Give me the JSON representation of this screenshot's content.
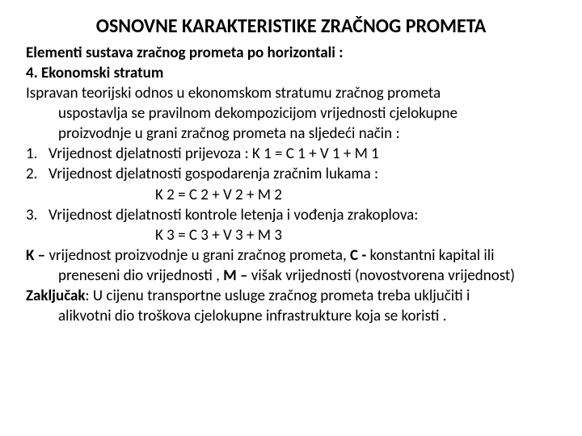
{
  "title": "OSNOVNE KARAKTERISTIKE ZRAČNOG PROMETA",
  "subtitle": "Elementi sustava zračnog prometa po horizontali :",
  "stratum": "4. Ekonomski stratum",
  "intro_l1": "Ispravan teorijski odnos u ekonomskom stratumu zračnog prometa",
  "intro_l2": "uspostavlja se pravilnom dekompozicijom vrijednosti cjelokupne",
  "intro_l3": "proizvodnje u grani zračnog prometa na sljedeći način :",
  "item1_num": "1.",
  "item1_text": "Vrijednost djelatnosti prijevoza :  K 1 = C 1 + V 1 + M 1",
  "item2_num": "2.",
  "item2_text": "Vrijednost djelatnosti gospodarenja zračnim lukama :",
  "item2_formula": "K 2 = C 2 + V 2 + M 2",
  "item3_num": "3.",
  "item3_text_a": " Vrijednost djelatnosti kontrole letenja i vođenja zrakoplova:",
  "item3_formula": "K 3 = C 3 + V 3 + M 3",
  "legend_K": "K – ",
  "legend_K_text": "vrijednost proizvodnje u grani zračnog prometa, ",
  "legend_C": "C -",
  "legend_C_text": "  konstantni kapital ili",
  "legend_l2a": "preneseni dio vrijednosti , ",
  "legend_M": "M – ",
  "legend_M_text": "višak vrijednosti (novostvorena vrijednost)",
  "concl_label": "Zaključak",
  "concl_l1": ": U cijenu transportne usluge zračnog prometa treba uključiti i",
  "concl_l2": "alikvotni dio troškova cjelokupne infrastrukture koja se koristi .",
  "style": {
    "title_fontsize": 24,
    "body_fontsize": 19,
    "background": "#ffffff",
    "text_color": "#000000"
  }
}
